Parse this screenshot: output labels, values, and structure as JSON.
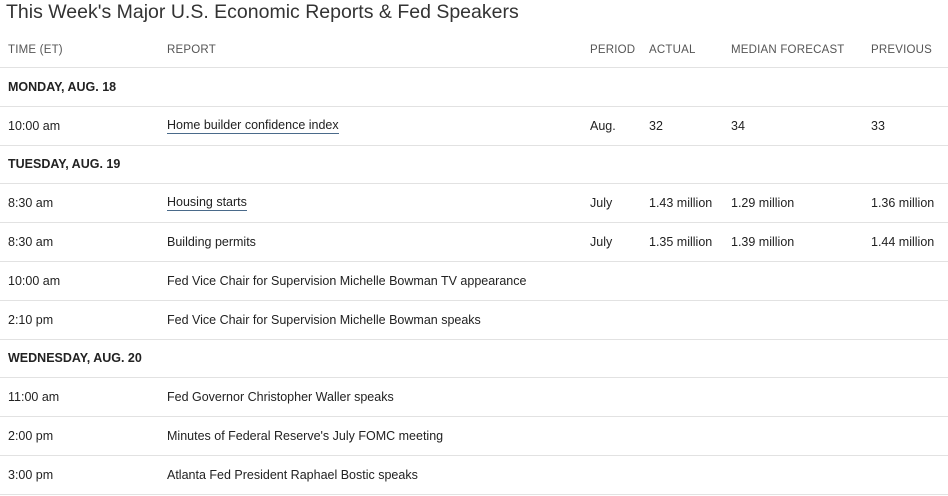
{
  "title": "This Week's Major U.S. Economic Reports & Fed Speakers",
  "columns": {
    "time": "TIME (ET)",
    "report": "REPORT",
    "period": "PERIOD",
    "actual": "ACTUAL",
    "median": "MEDIAN FORECAST",
    "previous": "PREVIOUS"
  },
  "days": [
    {
      "label": "MONDAY, AUG. 18",
      "rows": [
        {
          "time": "10:00 am",
          "report": "Home builder confidence index",
          "link": true,
          "period": "Aug.",
          "actual": "32",
          "median": "34",
          "previous": "33"
        }
      ]
    },
    {
      "label": "TUESDAY, AUG. 19",
      "rows": [
        {
          "time": "8:30 am",
          "report": "Housing starts",
          "link": true,
          "period": "July",
          "actual": "1.43 million",
          "median": "1.29 million",
          "previous": "1.36 million"
        },
        {
          "time": "8:30 am",
          "report": "Building permits",
          "link": false,
          "period": "July",
          "actual": "1.35 million",
          "median": "1.39 million",
          "previous": "1.44 million"
        },
        {
          "time": "10:00 am",
          "report": "Fed Vice Chair for Supervision Michelle Bowman TV appearance",
          "link": false,
          "period": "",
          "actual": "",
          "median": "",
          "previous": ""
        },
        {
          "time": "2:10 pm",
          "report": "Fed Vice Chair for Supervision Michelle Bowman speaks",
          "link": false,
          "period": "",
          "actual": "",
          "median": "",
          "previous": ""
        }
      ]
    },
    {
      "label": "WEDNESDAY, AUG. 20",
      "rows": [
        {
          "time": "11:00 am",
          "report": "Fed Governor Christopher Waller speaks",
          "link": false,
          "period": "",
          "actual": "",
          "median": "",
          "previous": ""
        },
        {
          "time": "2:00 pm",
          "report": "Minutes of Federal Reserve's July FOMC meeting",
          "link": false,
          "period": "",
          "actual": "",
          "median": "",
          "previous": ""
        },
        {
          "time": "3:00 pm",
          "report": "Atlanta Fed President Raphael Bostic speaks",
          "link": false,
          "period": "",
          "actual": "",
          "median": "",
          "previous": ""
        }
      ]
    }
  ]
}
